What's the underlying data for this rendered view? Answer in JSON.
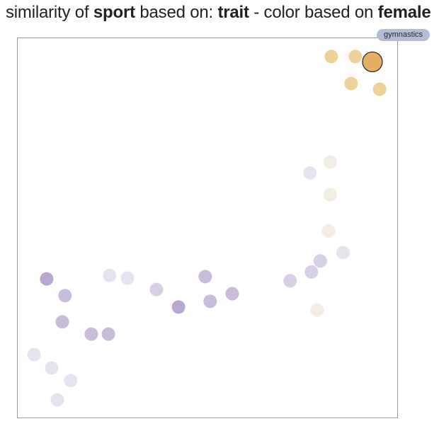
{
  "title": {
    "part1": "similarity of ",
    "entity": "sport",
    "part2": " based on: ",
    "basis": "trait",
    "part3": " - color based on ",
    "color_by": "female"
  },
  "tooltip": {
    "label": "gymnastics"
  },
  "colors": {
    "female_high": "#e6b062",
    "female_light": "#efd29a",
    "neutral_light": "#f2ede3",
    "male_pale": "#e6e3ef",
    "male_light": "#d8d0e6",
    "male_mid": "#c8bcdc",
    "male_dark": "#b8a8d0",
    "selected_stroke": "#222222",
    "frame": "#999999"
  },
  "chart_data": {
    "type": "scatter",
    "title": "similarity of sport based on: trait - color based on female",
    "xlabel": "",
    "ylabel": "",
    "xlim": [
      0,
      100
    ],
    "ylim": [
      0,
      100
    ],
    "grid": false,
    "legend": "none",
    "points": [
      {
        "x": 82.5,
        "y": 95.0,
        "color": "female_light"
      },
      {
        "x": 88.8,
        "y": 95.0,
        "color": "female_light"
      },
      {
        "x": 93.3,
        "y": 93.6,
        "color": "female_high",
        "selected": true,
        "label": "gymnastics"
      },
      {
        "x": 87.7,
        "y": 87.9,
        "color": "female_light"
      },
      {
        "x": 95.2,
        "y": 86.4,
        "color": "female_light"
      },
      {
        "x": 82.2,
        "y": 67.3,
        "color": "neutral_light"
      },
      {
        "x": 76.9,
        "y": 64.4,
        "color": "male_pale"
      },
      {
        "x": 82.2,
        "y": 58.7,
        "color": "neutral_light"
      },
      {
        "x": 81.8,
        "y": 49.2,
        "color": "neutral_light"
      },
      {
        "x": 85.6,
        "y": 43.5,
        "color": "male_pale"
      },
      {
        "x": 79.6,
        "y": 41.3,
        "color": "male_light"
      },
      {
        "x": 77.3,
        "y": 38.4,
        "color": "male_light"
      },
      {
        "x": 71.7,
        "y": 36.1,
        "color": "male_light"
      },
      {
        "x": 78.8,
        "y": 28.4,
        "color": "neutral_light"
      },
      {
        "x": 7.8,
        "y": 36.6,
        "color": "male_dark"
      },
      {
        "x": 12.6,
        "y": 32.2,
        "color": "male_mid"
      },
      {
        "x": 24.3,
        "y": 37.5,
        "color": "male_pale"
      },
      {
        "x": 29.0,
        "y": 36.8,
        "color": "male_pale"
      },
      {
        "x": 36.6,
        "y": 33.8,
        "color": "male_light"
      },
      {
        "x": 42.4,
        "y": 29.2,
        "color": "male_dark"
      },
      {
        "x": 49.4,
        "y": 37.2,
        "color": "male_mid"
      },
      {
        "x": 50.7,
        "y": 30.7,
        "color": "male_mid"
      },
      {
        "x": 56.5,
        "y": 32.7,
        "color": "male_mid"
      },
      {
        "x": 11.9,
        "y": 25.3,
        "color": "male_mid"
      },
      {
        "x": 19.5,
        "y": 22.1,
        "color": "male_mid"
      },
      {
        "x": 24.0,
        "y": 22.1,
        "color": "male_mid"
      },
      {
        "x": 4.5,
        "y": 16.7,
        "color": "male_pale"
      },
      {
        "x": 9.1,
        "y": 13.2,
        "color": "male_pale"
      },
      {
        "x": 14.1,
        "y": 9.9,
        "color": "male_pale"
      },
      {
        "x": 10.6,
        "y": 4.8,
        "color": "male_pale"
      }
    ]
  }
}
